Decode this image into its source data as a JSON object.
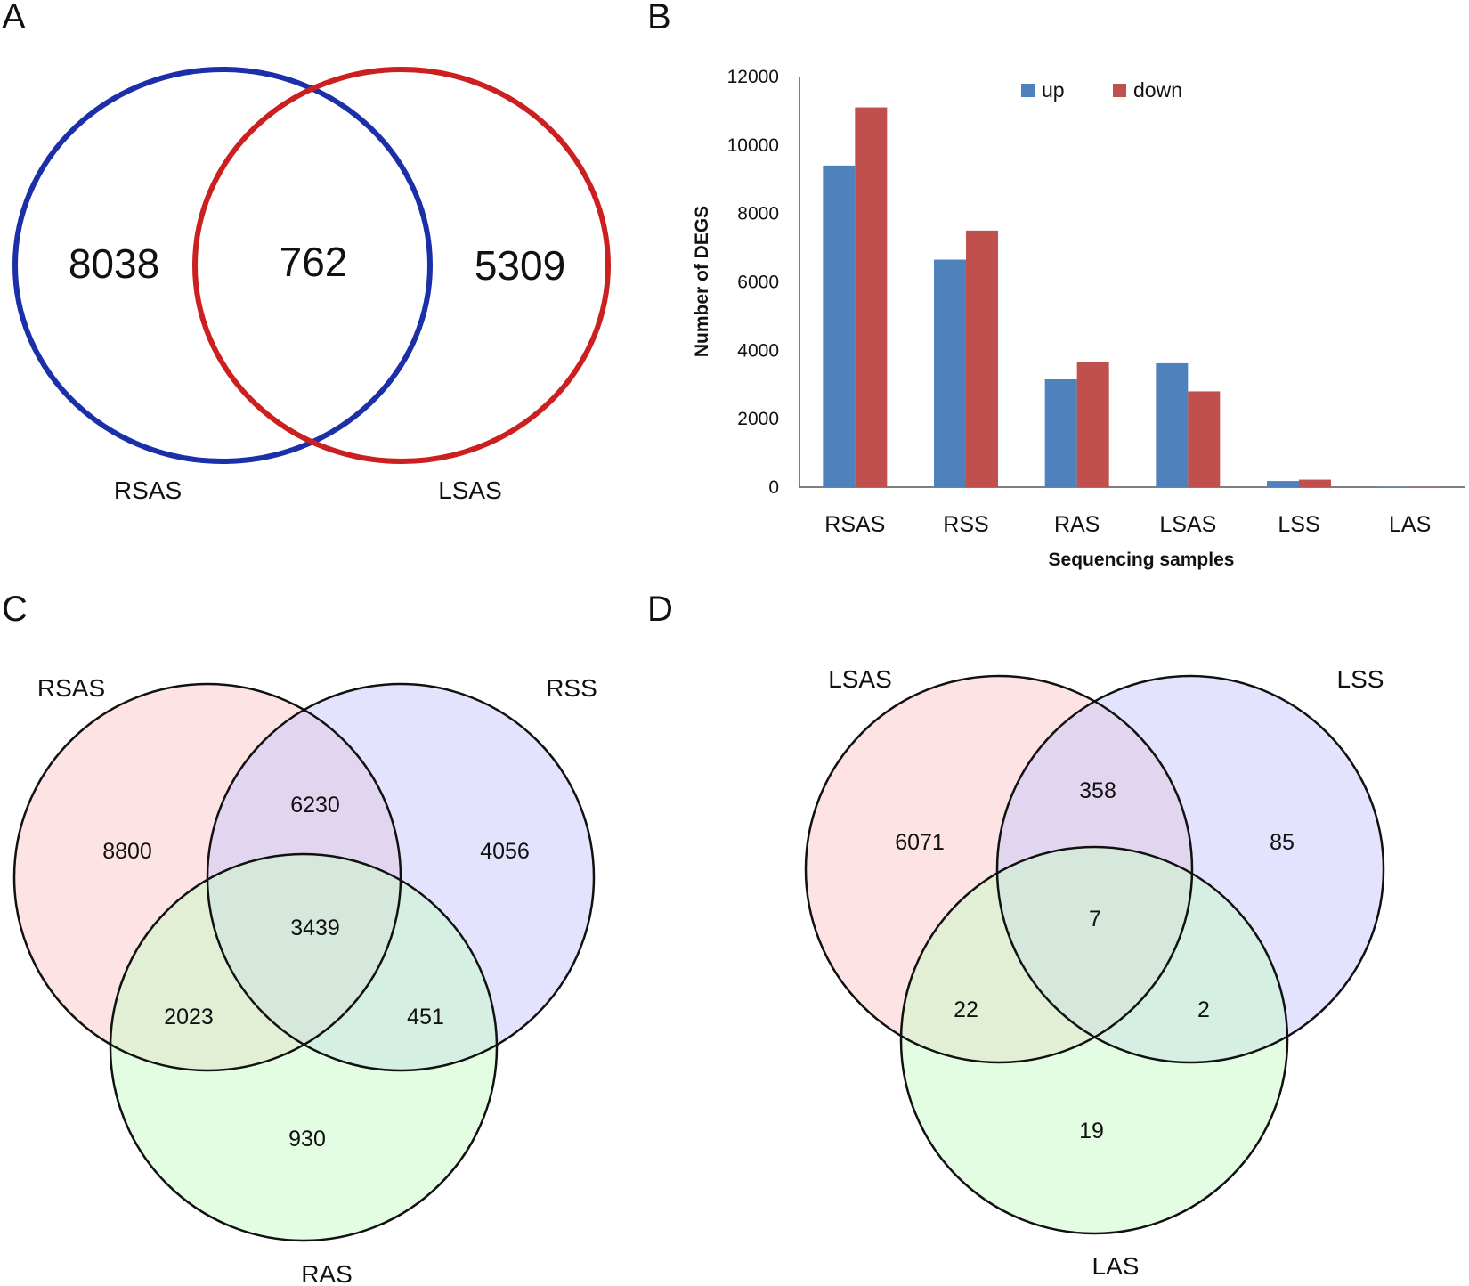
{
  "panels": {
    "a": {
      "label": "A",
      "sets": [
        "RSAS",
        "LSAS"
      ],
      "colors": [
        "#1a2fa8",
        "#cc1f1f"
      ],
      "counts": {
        "only_left": "8038",
        "both": "762",
        "only_right": "5309"
      }
    },
    "b": {
      "label": "B"
    },
    "c": {
      "label": "C",
      "sets": [
        "RSAS",
        "RSS",
        "RAS"
      ],
      "fills": [
        "#fcc8c8",
        "#c8c8fc",
        "#c8fcc8"
      ],
      "counts": {
        "s1_only": "8800",
        "s1_s2": "6230",
        "s2_only": "4056",
        "all": "3439",
        "s1_s3": "2023",
        "s2_s3": "451",
        "s3_only": "930"
      }
    },
    "d": {
      "label": "D",
      "sets": [
        "LSAS",
        "LSS",
        "LAS"
      ],
      "fills": [
        "#fcc8c8",
        "#c8c8fc",
        "#c8fcc8"
      ],
      "counts": {
        "s1_only": "6071",
        "s1_s2": "358",
        "s2_only": "85",
        "all": "7",
        "s1_s3": "22",
        "s2_s3": "2",
        "s3_only": "19"
      }
    }
  },
  "chart_data": {
    "type": "bar",
    "title": "",
    "xlabel": "Sequencing samples",
    "ylabel": "Number of DEGS",
    "categories": [
      "RSAS",
      "RSS",
      "RAS",
      "LSAS",
      "LSS",
      "LAS"
    ],
    "series": [
      {
        "name": "up",
        "color": "#4f81bd",
        "values": [
          9400,
          6650,
          3150,
          3620,
          180,
          10
        ]
      },
      {
        "name": "down",
        "color": "#c0504d",
        "values": [
          11100,
          7500,
          3650,
          2800,
          220,
          5
        ]
      }
    ],
    "ylim": [
      0,
      12000
    ],
    "yticks": [
      "0",
      "2000",
      "4000",
      "6000",
      "8000",
      "10000",
      "12000"
    ],
    "legend_position": "top",
    "grid": false
  }
}
